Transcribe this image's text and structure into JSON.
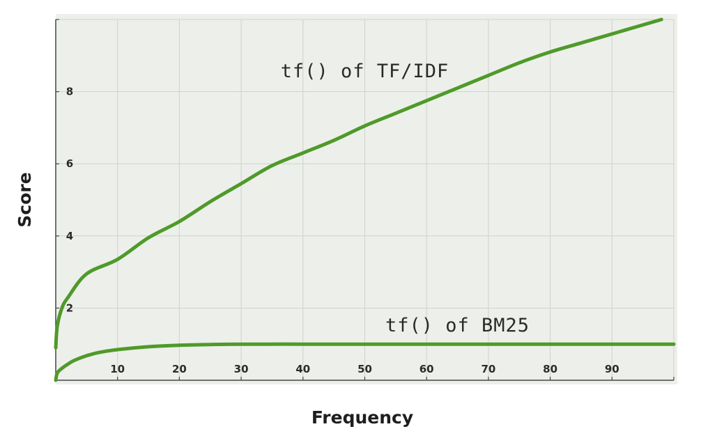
{
  "chart_data": {
    "type": "line",
    "title": "",
    "xlabel": "Frequency",
    "ylabel": "Score",
    "xlim": [
      0,
      100
    ],
    "ylim": [
      0,
      10
    ],
    "x_ticks": [
      10,
      20,
      30,
      40,
      50,
      60,
      70,
      80,
      90
    ],
    "y_ticks": [
      2,
      4,
      6,
      8
    ],
    "grid": true,
    "legend": "none",
    "colors": {
      "plot_background": "#edf0ea",
      "grid": "#cfd2cc",
      "axis": "#444444",
      "line": "#4f9a2a"
    },
    "series": [
      {
        "name": "tf() of TF/IDF",
        "x": [
          0,
          0.25,
          1,
          2,
          5,
          10,
          15,
          20,
          25,
          30,
          35,
          40,
          45,
          50,
          55,
          60,
          65,
          70,
          75,
          80,
          85,
          90,
          95,
          98
        ],
        "y": [
          0.9,
          1.5,
          2.0,
          2.3,
          2.95,
          3.35,
          3.95,
          4.4,
          4.95,
          5.45,
          5.95,
          6.3,
          6.65,
          7.05,
          7.4,
          7.75,
          8.1,
          8.45,
          8.8,
          9.1,
          9.35,
          9.6,
          9.85,
          10.0
        ]
      },
      {
        "name": "tf() of BM25",
        "x": [
          0,
          0.25,
          1,
          2,
          3,
          5,
          7,
          10,
          15,
          20,
          25,
          30,
          40,
          50,
          60,
          70,
          80,
          90,
          100
        ],
        "y": [
          0.0,
          0.2,
          0.33,
          0.45,
          0.55,
          0.68,
          0.77,
          0.85,
          0.93,
          0.97,
          0.99,
          1.0,
          1.0,
          1.0,
          1.0,
          1.0,
          1.0,
          1.0,
          1.0
        ]
      }
    ],
    "annotations": [
      {
        "text": "tf() of TF/IDF",
        "x": 50,
        "y": 8.4
      },
      {
        "text": "tf() of BM25",
        "x": 65,
        "y": 1.35
      }
    ]
  }
}
